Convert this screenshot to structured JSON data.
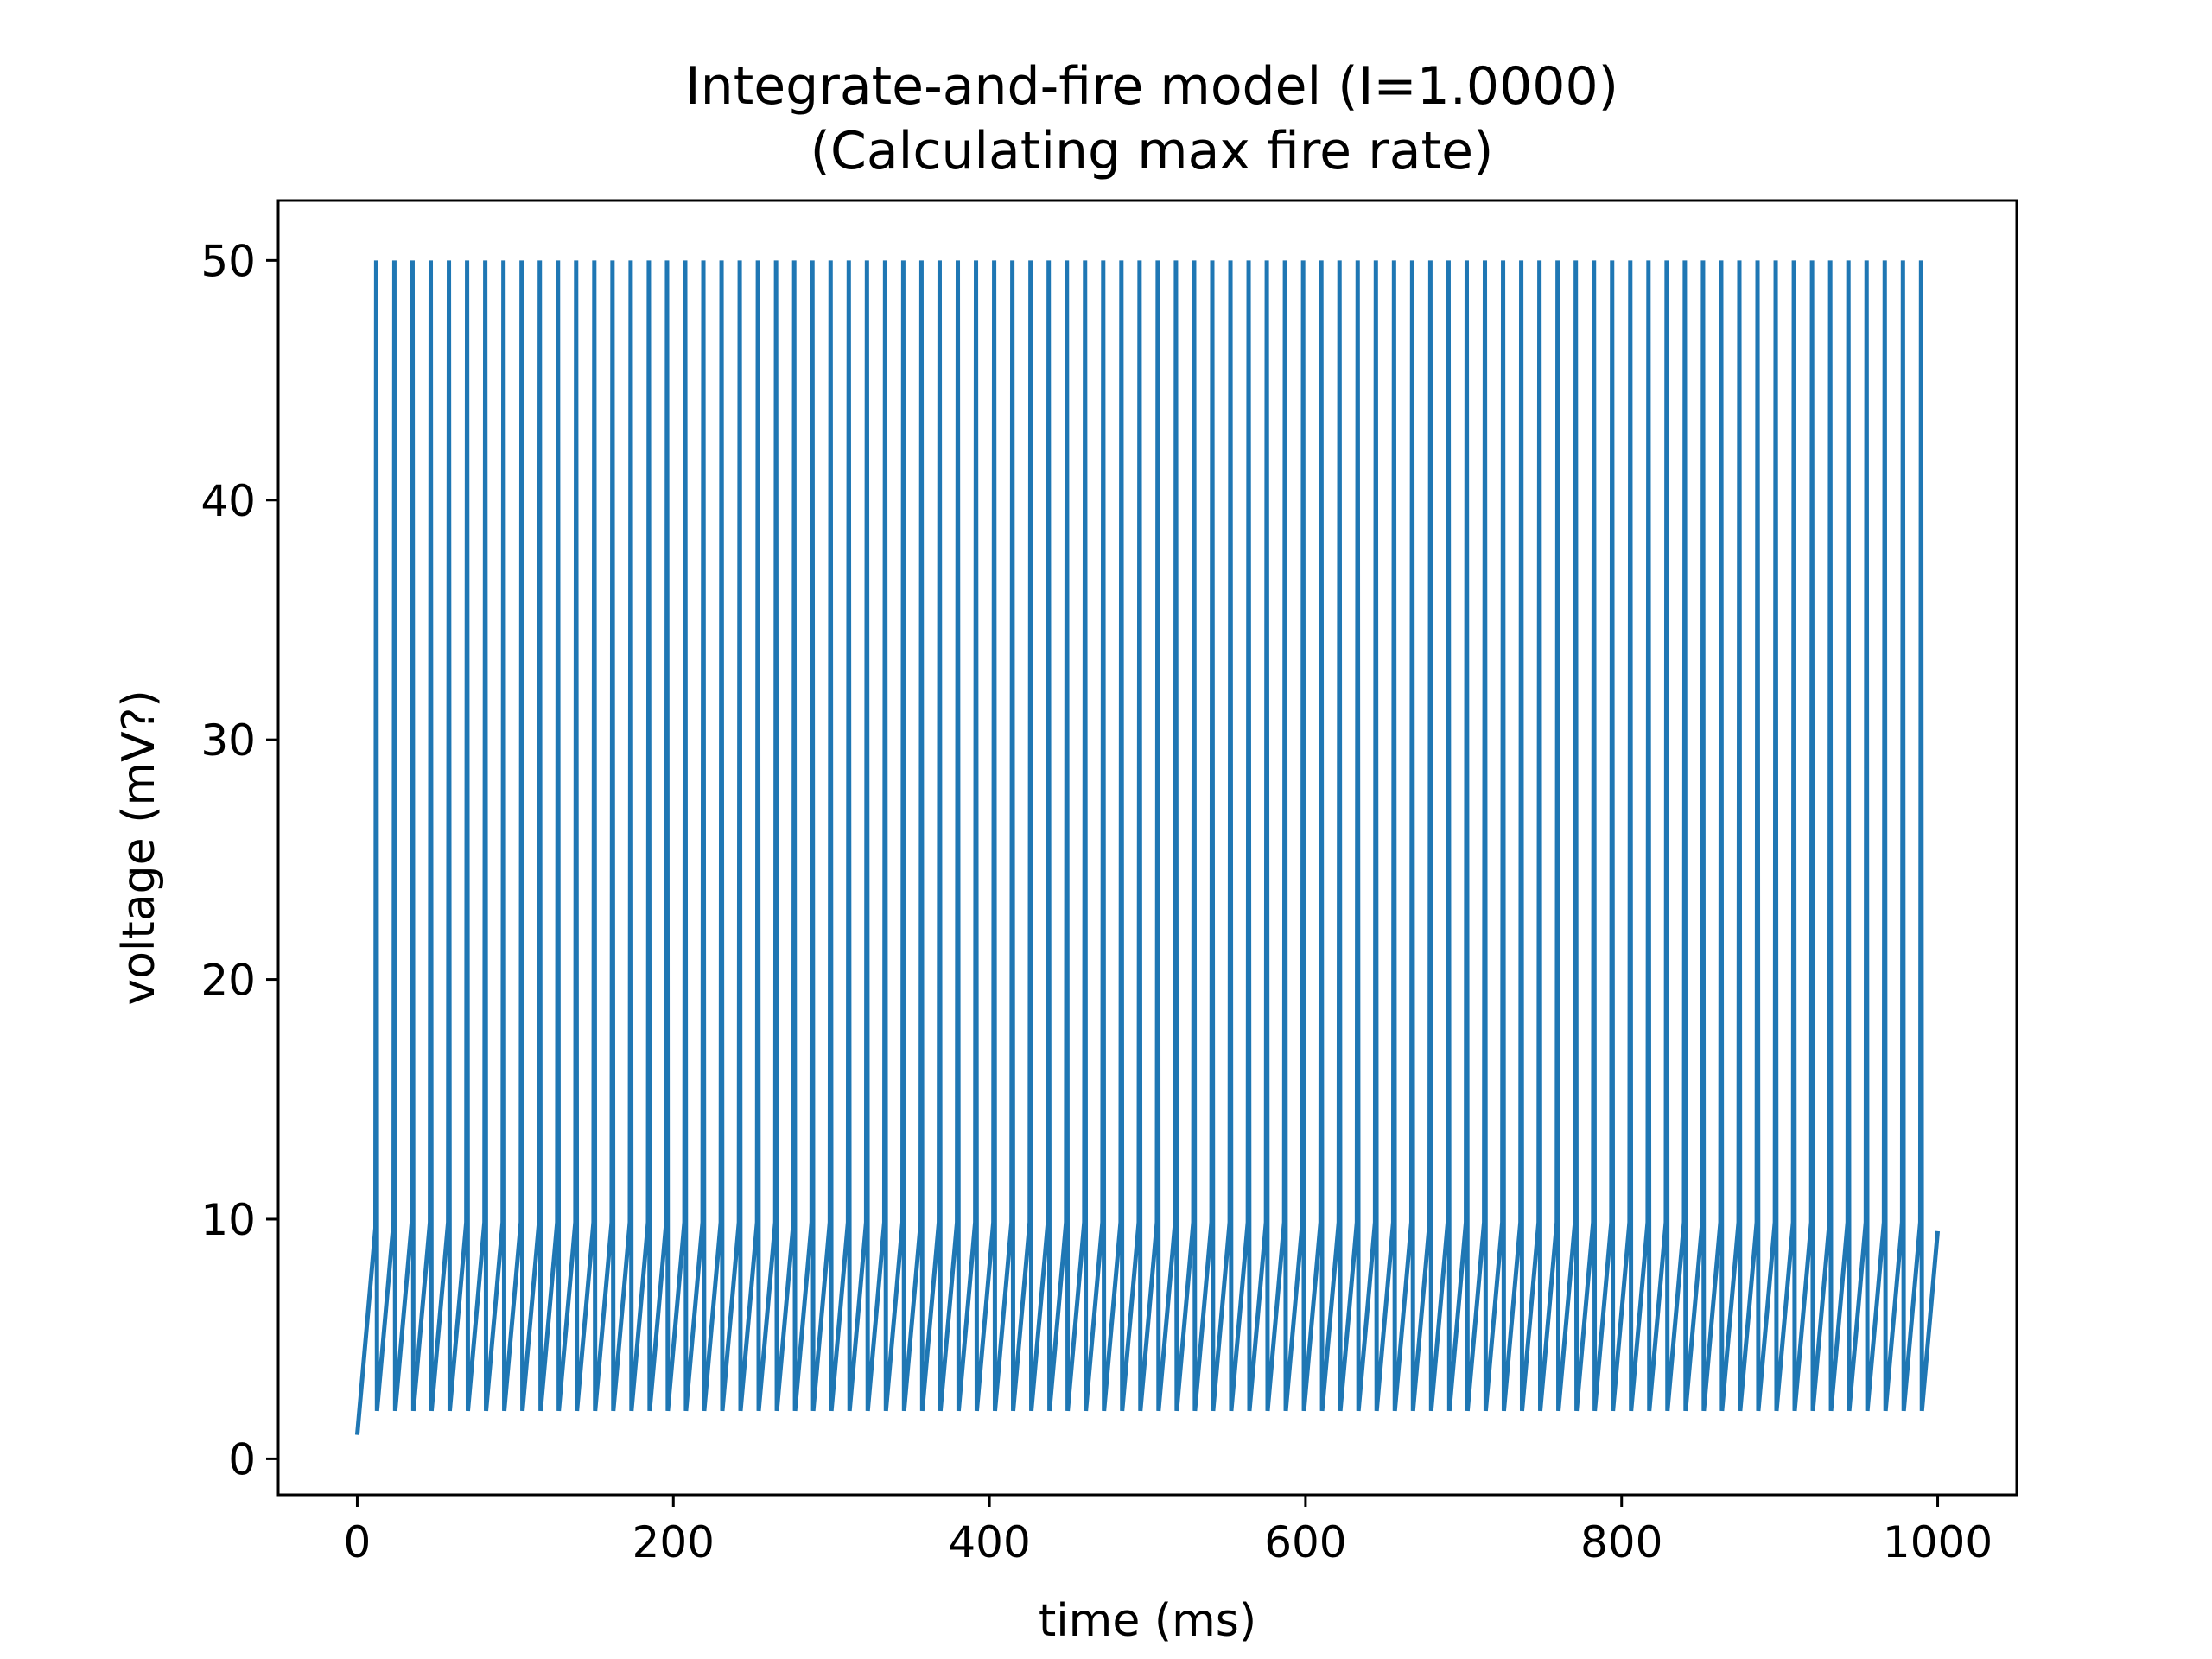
{
  "chart_data": {
    "type": "line",
    "title": "Integrate-and-fire model (I=1.0000)",
    "subtitle": "(Calculating max fire rate)",
    "xlabel": "time (ms)",
    "ylabel": "voltage (mV?)",
    "xlim": [
      -50,
      1050
    ],
    "ylim": [
      -1.5,
      52.5
    ],
    "xticks": [
      0,
      200,
      400,
      600,
      800,
      1000
    ],
    "yticks": [
      0,
      10,
      20,
      30,
      40,
      50
    ],
    "grid": false,
    "legend": "none",
    "line_color": "#1f77b4",
    "model": {
      "dt_ms": 0.5,
      "duration_ms": 1000,
      "v_start": 1,
      "v_reset": 2,
      "v_threshold": 10,
      "v_spike": 50,
      "slope_mv_per_ms": 0.75
    },
    "series": [
      {
        "values_description": "membrane voltage trace",
        "points": [
          [
            0,
            1
          ],
          [
            12,
            10
          ],
          [
            12,
            50
          ],
          [
            12.5,
            2
          ],
          [
            23,
            9.9
          ],
          [
            1000,
            9
          ]
        ]
      }
    ]
  }
}
